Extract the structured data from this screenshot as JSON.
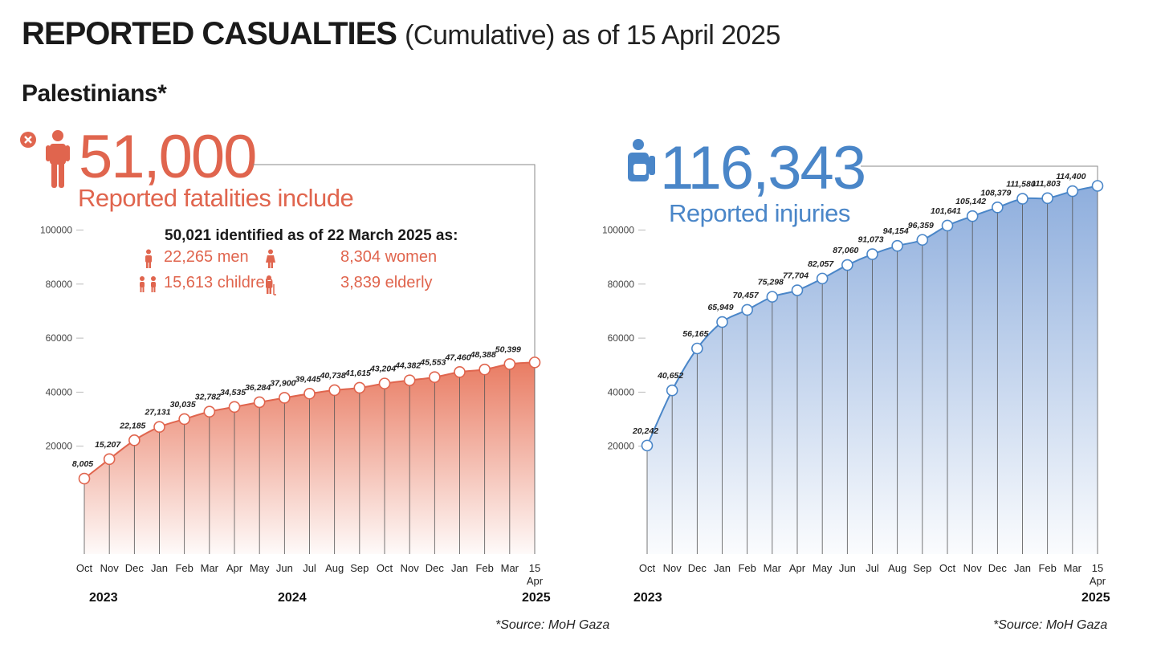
{
  "header": {
    "title_bold": "REPORTED CASUALTIES",
    "title_rest": "(Cumulative) as of 15 April 2025",
    "subtitle": "Palestinians*"
  },
  "fatalities": {
    "total": "51,000",
    "label": "Reported fatalities include",
    "identified_heading": "50,021 identified as of 22 March 2025 as:",
    "men": "22,265 men",
    "women": "8,304 women",
    "children": "15,613 children",
    "elderly": "3,839 elderly",
    "source": "*Source: MoH Gaza",
    "color": "#e0654e"
  },
  "injuries": {
    "total": "116,343",
    "label": "Reported injuries",
    "source": "*Source: MoH Gaza",
    "color": "#4a86c8"
  },
  "years": {
    "y2023": "2023",
    "y2024": "2024",
    "y2025": "2025"
  },
  "chart_data": [
    {
      "type": "area",
      "series": [
        {
          "values": [
            8005,
            15207,
            22185,
            27131,
            30035,
            32782,
            34535,
            36284,
            37900,
            39445,
            40738,
            41615,
            43204,
            44382,
            45553,
            47460,
            48388,
            50399,
            51000
          ]
        }
      ],
      "labels": [
        "8,005",
        "15,207",
        "22,185",
        "27,131",
        "30,035",
        "32,782",
        "34,535",
        "36,284",
        "37,900",
        "39,445",
        "40,738",
        "41,615",
        "43,204",
        "44,382",
        "45,553",
        "47,460",
        "48,388",
        "50,399",
        ""
      ],
      "categories": [
        "Oct",
        "Nov",
        "Dec",
        "Jan",
        "Feb",
        "Mar",
        "Apr",
        "May",
        "Jun",
        "Jul",
        "Aug",
        "Sep",
        "Oct",
        "Nov",
        "Dec",
        "Jan",
        "Feb",
        "Mar",
        "15 Apr"
      ],
      "yticks": [
        20000,
        40000,
        60000,
        80000,
        100000
      ],
      "ylim": [
        0,
        120000
      ],
      "grid": false
    },
    {
      "type": "area",
      "series": [
        {
          "values": [
            20242,
            40652,
            56165,
            65949,
            70457,
            75298,
            77704,
            82057,
            87060,
            91073,
            94154,
            96359,
            101641,
            105142,
            108379,
            111580,
            111803,
            114400,
            116343
          ]
        }
      ],
      "labels": [
        "20,242",
        "40,652",
        "56,165",
        "65,949",
        "70,457",
        "75,298",
        "77,704",
        "82,057",
        "87,060",
        "91,073",
        "94,154",
        "96,359",
        "101,641",
        "105,142",
        "108,379",
        "111,580",
        "111,803",
        "114,400",
        ""
      ],
      "categories": [
        "Oct",
        "Nov",
        "Dec",
        "Jan",
        "Feb",
        "Mar",
        "Apr",
        "May",
        "Jun",
        "Jul",
        "Aug",
        "Sep",
        "Oct",
        "Nov",
        "Dec",
        "Jan",
        "Feb",
        "Mar",
        "15 Apr"
      ],
      "yticks": [
        20000,
        40000,
        60000,
        80000,
        100000
      ],
      "ylim": [
        0,
        120000
      ],
      "grid": false
    }
  ]
}
